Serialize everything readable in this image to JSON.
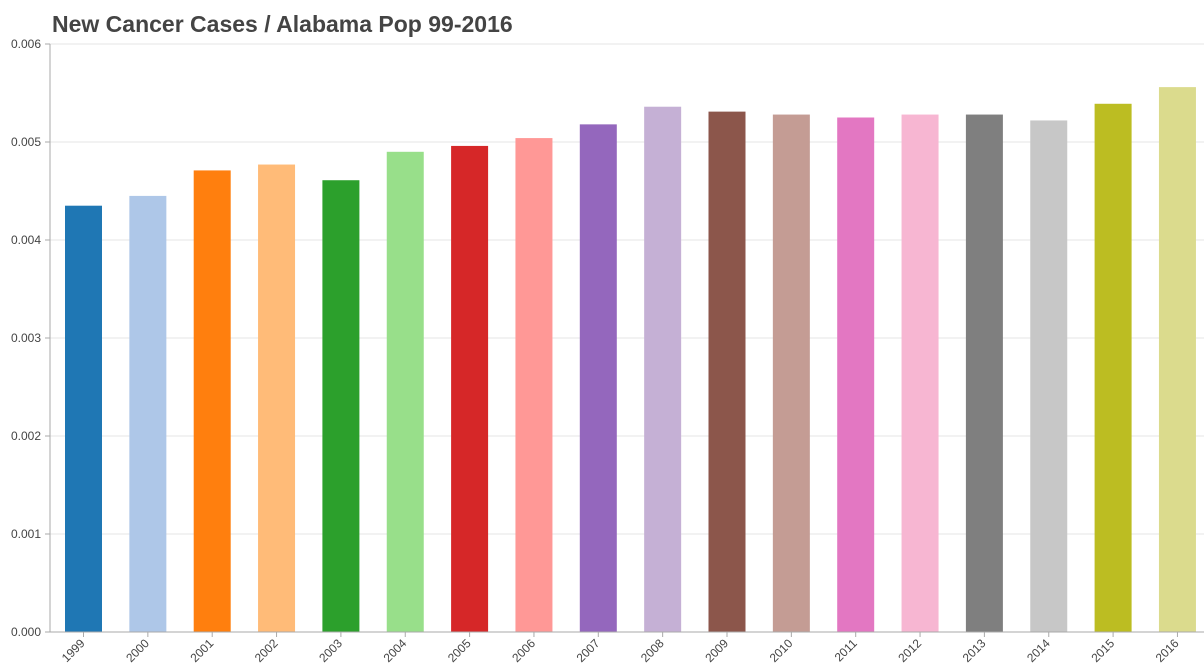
{
  "chart_data": {
    "type": "bar",
    "title": "New Cancer Cases / Alabama Pop 99-2016",
    "xlabel": "",
    "ylabel": "",
    "categories": [
      "1999",
      "2000",
      "2001",
      "2002",
      "2003",
      "2004",
      "2005",
      "2006",
      "2007",
      "2008",
      "2009",
      "2010",
      "2011",
      "2012",
      "2013",
      "2014",
      "2015",
      "2016"
    ],
    "values": [
      0.00435,
      0.00445,
      0.00471,
      0.00477,
      0.00461,
      0.0049,
      0.00496,
      0.00504,
      0.00518,
      0.00536,
      0.00531,
      0.00528,
      0.00525,
      0.00528,
      0.00528,
      0.00522,
      0.00539,
      0.00556
    ],
    "colors": [
      "#1f77b4",
      "#aec7e8",
      "#ff7f0e",
      "#ffbb78",
      "#2ca02c",
      "#98df8a",
      "#d62728",
      "#ff9896",
      "#9467bd",
      "#c5b0d5",
      "#8c564b",
      "#c49c94",
      "#e377c2",
      "#f7b6d2",
      "#7f7f7f",
      "#c7c7c7",
      "#bcbd22",
      "#dbdb8d"
    ],
    "ylim": [
      0,
      0.006
    ],
    "yticks": [
      "0.000",
      "0.001",
      "0.002",
      "0.003",
      "0.004",
      "0.005",
      "0.006"
    ],
    "grid": true,
    "legend": "none"
  }
}
